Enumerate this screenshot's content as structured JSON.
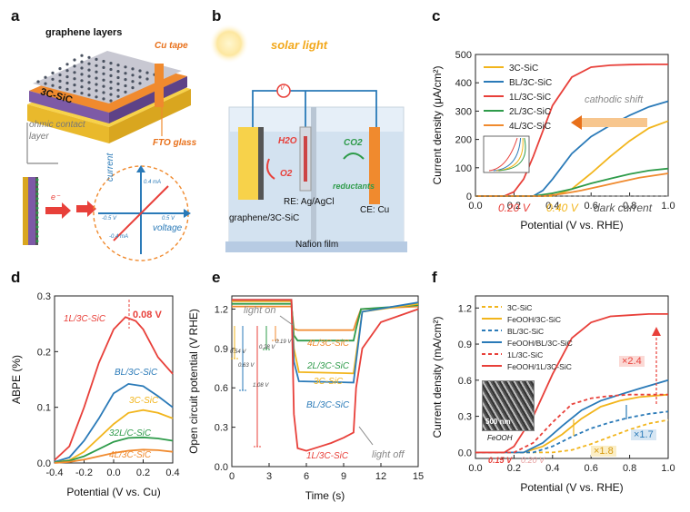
{
  "panels": {
    "a": {
      "letter": "a",
      "graphene_label": "graphene layers",
      "cu_tape": "Cu tape",
      "sic_label": "3C-SiC",
      "ohmic1": "ohmic contact",
      "ohmic2": "layer",
      "fto": "FTO glass",
      "electron": "e⁻",
      "inset_current": "current",
      "inset_voltage": "voltage",
      "inset_i_pos": "0.4 mA",
      "inset_i_neg": "-0.4 mA",
      "inset_v_neg": "-0.5 V",
      "inset_v_pos": "0.5 V"
    },
    "b": {
      "letter": "b",
      "solar": "solar light",
      "h2o": "H2O",
      "o2": "O2",
      "co2": "CO2",
      "reductants": "reductants",
      "re": "RE: Ag/AgCl",
      "ce": "CE: Cu",
      "we": "graphene/3C-SiC",
      "nafion": "Nafion film",
      "meter": "V"
    },
    "c": {
      "letter": "c",
      "legend": [
        "3C-SiC",
        "BL/3C-SiC",
        "1L/3C-SiC",
        "2L/3C-SiC",
        "4L/3C-SiC"
      ],
      "cathodic": "cathodic shift",
      "ann_020": "0.20 V",
      "ann_040": "0.40 V",
      "dark": "dark current"
    },
    "d": {
      "letter": "d",
      "peak": "0.08 V",
      "lbl_1l": "1L/3C-SiC",
      "lbl_bl": "BL/3C-SiC",
      "lbl_3c": "3C-SiC",
      "lbl_32l": "32L/C-SiC",
      "lbl_4l": "4L/3C-SiC"
    },
    "e": {
      "letter": "e",
      "light_on": "light on",
      "light_off": "light off",
      "lbl_4l": "4L/3C-SiC",
      "lbl_2l": "2L/3C-SiC",
      "lbl_3c": "3C-SiC",
      "lbl_bl": "BL/3C-SiC",
      "lbl_1l": "1L/3C-SiC",
      "drops": [
        "0.54 V",
        "0.63 V",
        "1.08 V",
        "0.28 V",
        "0.19 V"
      ]
    },
    "f": {
      "letter": "f",
      "legend": [
        "3C-SiC",
        "FeOOH/3C-SiC",
        "BL/3C-SiC",
        "FeOOH/BL/3C-SiC",
        "1L/3C-SiC",
        "FeOOH/1L/3C-SiC"
      ],
      "x24": "×2.4",
      "x17": "×1.7",
      "x18": "×1.8",
      "ann_015": "0.15 V",
      "ann_020": "0.20 V",
      "sem_scale": "500 nm",
      "sem_label": "FeOOH"
    }
  },
  "chart_data": [
    {
      "panel": "c",
      "type": "line",
      "xlabel": "Potential (V vs. RHE)",
      "ylabel": "Current density (μA/cm²)",
      "xlim": [
        0,
        1.0
      ],
      "ylim": [
        -50,
        500
      ],
      "xticks": [
        "0.0",
        "0.2",
        "0.4",
        "0.6",
        "0.8",
        "1.0"
      ],
      "yticks": [
        "0",
        "100",
        "200",
        "300",
        "400",
        "500"
      ],
      "legend_position": "top-left",
      "series": [
        {
          "name": "3C-SiC",
          "color": "#f2b51c",
          "x": [
            0,
            0.4,
            0.5,
            0.6,
            0.7,
            0.8,
            0.9,
            1.0
          ],
          "y": [
            0,
            0,
            25,
            80,
            140,
            195,
            240,
            265
          ]
        },
        {
          "name": "BL/3C-SiC",
          "color": "#2a7ab8",
          "x": [
            0,
            0.3,
            0.35,
            0.4,
            0.5,
            0.6,
            0.7,
            0.8,
            0.9,
            1.0
          ],
          "y": [
            0,
            0,
            20,
            60,
            150,
            210,
            250,
            285,
            315,
            335
          ]
        },
        {
          "name": "1L/3C-SiC",
          "color": "#e8403a",
          "x": [
            0,
            0.15,
            0.2,
            0.25,
            0.3,
            0.35,
            0.4,
            0.5,
            0.6,
            0.7,
            0.8,
            0.9,
            1.0
          ],
          "y": [
            0,
            0,
            15,
            60,
            140,
            230,
            320,
            420,
            455,
            462,
            464,
            465,
            465
          ]
        },
        {
          "name": "2L/3C-SiC",
          "color": "#2e9b4a",
          "x": [
            0,
            0.3,
            0.4,
            0.5,
            0.6,
            0.7,
            0.8,
            0.9,
            1.0
          ],
          "y": [
            0,
            0,
            10,
            25,
            45,
            62,
            78,
            90,
            97
          ]
        },
        {
          "name": "4L/3C-SiC",
          "color": "#f08a2e",
          "x": [
            0,
            0.35,
            0.45,
            0.55,
            0.65,
            0.75,
            0.85,
            1.0
          ],
          "y": [
            0,
            0,
            8,
            20,
            35,
            50,
            65,
            80
          ]
        }
      ]
    },
    {
      "panel": "d",
      "type": "line",
      "xlabel": "Potential (V vs. Cu)",
      "ylabel": "ABPE (%)",
      "xlim": [
        -0.4,
        0.4
      ],
      "ylim": [
        0,
        0.3
      ],
      "xticks": [
        "-0.4",
        "-0.2",
        "0.0",
        "0.2",
        "0.4"
      ],
      "yticks": [
        "0.0",
        "0.1",
        "0.2",
        "0.3"
      ],
      "series": [
        {
          "name": "1L/3C-SiC",
          "color": "#e8403a",
          "x": [
            -0.4,
            -0.3,
            -0.2,
            -0.1,
            0,
            0.08,
            0.15,
            0.2,
            0.3,
            0.4
          ],
          "y": [
            0.005,
            0.03,
            0.1,
            0.18,
            0.24,
            0.262,
            0.255,
            0.24,
            0.19,
            0.16
          ]
        },
        {
          "name": "BL/3C-SiC",
          "color": "#2a7ab8",
          "x": [
            -0.4,
            -0.3,
            -0.2,
            -0.1,
            0,
            0.1,
            0.2,
            0.3,
            0.4
          ],
          "y": [
            0.002,
            0.01,
            0.04,
            0.08,
            0.125,
            0.142,
            0.138,
            0.12,
            0.1
          ]
        },
        {
          "name": "3C-SiC",
          "color": "#f2b51c",
          "x": [
            -0.4,
            -0.3,
            -0.2,
            -0.1,
            0,
            0.1,
            0.2,
            0.3,
            0.4
          ],
          "y": [
            0.001,
            0.005,
            0.02,
            0.045,
            0.07,
            0.09,
            0.095,
            0.09,
            0.08
          ]
        },
        {
          "name": "32L/C-SiC",
          "color": "#2e9b4a",
          "x": [
            -0.4,
            -0.3,
            -0.2,
            -0.1,
            0,
            0.1,
            0.2,
            0.3,
            0.4
          ],
          "y": [
            0.001,
            0.004,
            0.012,
            0.025,
            0.038,
            0.045,
            0.046,
            0.044,
            0.04
          ]
        },
        {
          "name": "4L/3C-SiC",
          "color": "#f08a2e",
          "x": [
            -0.4,
            -0.3,
            -0.2,
            -0.1,
            0,
            0.1,
            0.2,
            0.3,
            0.4
          ],
          "y": [
            0,
            0.002,
            0.006,
            0.012,
            0.018,
            0.022,
            0.024,
            0.023,
            0.02
          ]
        }
      ]
    },
    {
      "panel": "e",
      "type": "line",
      "xlabel": "Time (s)",
      "ylabel": "Open circuit potential (V RHE)",
      "xlim": [
        0,
        15
      ],
      "ylim": [
        0,
        1.3
      ],
      "xticks": [
        "0",
        "3",
        "6",
        "9",
        "12",
        "15"
      ],
      "yticks": [
        "0.0",
        "0.3",
        "0.6",
        "0.9",
        "1.2"
      ],
      "series": [
        {
          "name": "4L/3C-SiC",
          "color": "#f08a2e",
          "x": [
            0,
            4.8,
            5,
            5.3,
            9.8,
            10,
            10.4,
            15
          ],
          "y": [
            1.22,
            1.22,
            1.05,
            1.04,
            1.04,
            1.1,
            1.2,
            1.22
          ]
        },
        {
          "name": "2L/3C-SiC",
          "color": "#2e9b4a",
          "x": [
            0,
            4.8,
            5,
            5.3,
            9.8,
            10,
            10.4,
            15
          ],
          "y": [
            1.24,
            1.24,
            1.0,
            0.96,
            0.96,
            1.05,
            1.2,
            1.23
          ]
        },
        {
          "name": "3C-SiC",
          "color": "#f2b51c",
          "x": [
            0,
            4.8,
            5,
            5.4,
            9.8,
            10,
            10.5,
            15
          ],
          "y": [
            1.26,
            1.26,
            0.9,
            0.72,
            0.71,
            0.85,
            1.18,
            1.24
          ]
        },
        {
          "name": "BL/3C-SiC",
          "color": "#2a7ab8",
          "x": [
            0,
            4.8,
            5,
            5.4,
            9.8,
            10,
            10.5,
            15
          ],
          "y": [
            1.27,
            1.27,
            0.8,
            0.65,
            0.64,
            0.8,
            1.18,
            1.25
          ]
        },
        {
          "name": "1L/3C-SiC",
          "color": "#e8403a",
          "x": [
            0,
            4.8,
            5,
            5.3,
            6,
            7,
            8,
            9,
            9.8,
            10,
            10.5,
            12,
            15
          ],
          "y": [
            1.27,
            1.27,
            0.4,
            0.14,
            0.12,
            0.15,
            0.18,
            0.22,
            0.26,
            0.6,
            0.9,
            1.1,
            1.2
          ]
        }
      ]
    },
    {
      "panel": "f",
      "type": "line",
      "xlabel": "Potential (V vs. RHE)",
      "ylabel": "Current density (mA/cm²)",
      "xlim": [
        0,
        1.0
      ],
      "ylim": [
        -0.05,
        1.3
      ],
      "xticks": [
        "0.0",
        "0.2",
        "0.4",
        "0.6",
        "0.8",
        "1.0"
      ],
      "yticks": [
        "0.0",
        "0.3",
        "0.6",
        "0.9",
        "1.2"
      ],
      "legend_position": "top-left",
      "series": [
        {
          "name": "3C-SiC",
          "color": "#f2b51c",
          "dashed": true,
          "x": [
            0,
            0.4,
            0.5,
            0.6,
            0.7,
            0.8,
            0.9,
            1.0
          ],
          "y": [
            0,
            0,
            0.02,
            0.07,
            0.13,
            0.19,
            0.24,
            0.27
          ]
        },
        {
          "name": "FeOOH/3C-SiC",
          "color": "#f2b51c",
          "dashed": false,
          "x": [
            0,
            0.25,
            0.35,
            0.45,
            0.55,
            0.65,
            0.75,
            0.85,
            1.0
          ],
          "y": [
            0,
            0,
            0.05,
            0.15,
            0.28,
            0.38,
            0.43,
            0.46,
            0.48
          ]
        },
        {
          "name": "BL/3C-SiC",
          "color": "#2a7ab8",
          "dashed": true,
          "x": [
            0,
            0.3,
            0.4,
            0.5,
            0.6,
            0.7,
            0.8,
            0.9,
            1.0
          ],
          "y": [
            0,
            0,
            0.05,
            0.13,
            0.2,
            0.25,
            0.29,
            0.32,
            0.34
          ]
        },
        {
          "name": "FeOOH/BL/3C-SiC",
          "color": "#2a7ab8",
          "dashed": false,
          "x": [
            0,
            0.25,
            0.35,
            0.45,
            0.55,
            0.65,
            0.75,
            0.85,
            1.0
          ],
          "y": [
            0,
            0,
            0.08,
            0.22,
            0.35,
            0.43,
            0.48,
            0.53,
            0.6
          ]
        },
        {
          "name": "1L/3C-SiC",
          "color": "#e8403a",
          "dashed": true,
          "x": [
            0,
            0.2,
            0.3,
            0.4,
            0.5,
            0.6,
            0.7,
            0.8,
            1.0
          ],
          "y": [
            0,
            0,
            0.08,
            0.25,
            0.4,
            0.45,
            0.47,
            0.48,
            0.48
          ]
        },
        {
          "name": "FeOOH/1L/3C-SiC",
          "color": "#e8403a",
          "dashed": false,
          "x": [
            0,
            0.15,
            0.2,
            0.3,
            0.4,
            0.5,
            0.6,
            0.7,
            0.8,
            0.9,
            1.0
          ],
          "y": [
            0,
            0,
            0.05,
            0.3,
            0.65,
            0.95,
            1.08,
            1.13,
            1.14,
            1.15,
            1.15
          ]
        }
      ]
    }
  ]
}
